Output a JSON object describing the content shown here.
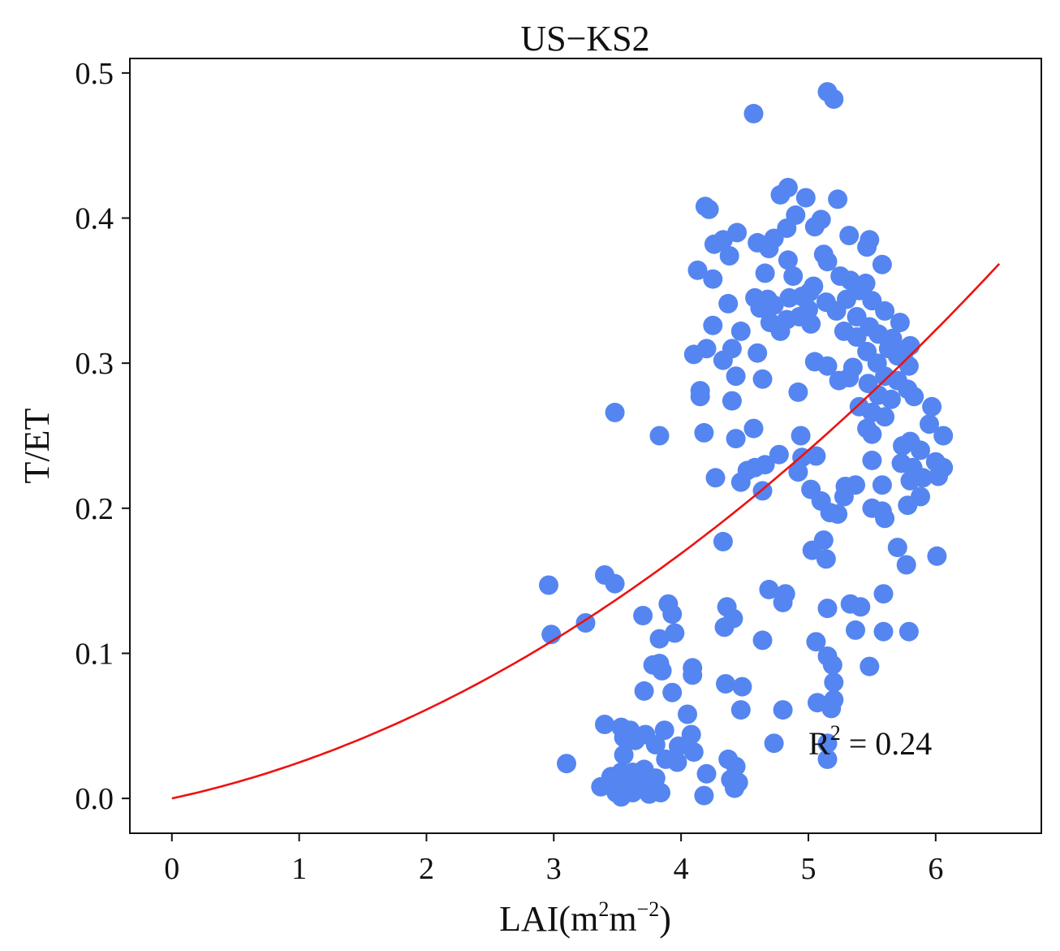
{
  "chart_data": {
    "type": "scatter",
    "title": "US−KS2",
    "xlabel": {
      "base": "LAI(m",
      "sup1": "2",
      "mid": "m",
      "sup2": "−2",
      "end": ")"
    },
    "ylabel": "T/ET",
    "xlim": [
      -0.33,
      6.83
    ],
    "ylim": [
      -0.024,
      0.51
    ],
    "xticks": [
      0,
      1,
      2,
      3,
      4,
      5,
      6
    ],
    "xtick_labels": [
      "0",
      "1",
      "2",
      "3",
      "4",
      "5",
      "6"
    ],
    "yticks": [
      0.0,
      0.1,
      0.2,
      0.3,
      0.4,
      0.5
    ],
    "ytick_labels": [
      "0.0",
      "0.1",
      "0.2",
      "0.3",
      "0.4",
      "0.5"
    ],
    "grid": false,
    "legend": null,
    "point_color": "#5585f0",
    "fit_color": "#ee1111",
    "annotation": {
      "base": "R",
      "sup": "2",
      "rest": " = 0.24",
      "position": "lower-right"
    },
    "fit": {
      "model": "quadratic",
      "a": 0.0058,
      "b": 0.019,
      "c": 0.0,
      "x_range": [
        0,
        6.5
      ]
    },
    "points": [
      [
        5.15,
        0.487
      ],
      [
        5.2,
        0.482
      ],
      [
        4.57,
        0.472
      ],
      [
        4.84,
        0.421
      ],
      [
        4.78,
        0.416
      ],
      [
        4.98,
        0.414
      ],
      [
        5.23,
        0.413
      ],
      [
        4.19,
        0.408
      ],
      [
        4.22,
        0.406
      ],
      [
        4.9,
        0.402
      ],
      [
        5.1,
        0.399
      ],
      [
        5.05,
        0.394
      ],
      [
        4.83,
        0.393
      ],
      [
        4.44,
        0.39
      ],
      [
        5.32,
        0.388
      ],
      [
        5.48,
        0.385
      ],
      [
        4.73,
        0.386
      ],
      [
        4.33,
        0.385
      ],
      [
        4.26,
        0.382
      ],
      [
        4.6,
        0.383
      ],
      [
        5.46,
        0.38
      ],
      [
        4.69,
        0.379
      ],
      [
        4.38,
        0.374
      ],
      [
        5.12,
        0.375
      ],
      [
        4.84,
        0.371
      ],
      [
        5.15,
        0.37
      ],
      [
        5.58,
        0.368
      ],
      [
        4.13,
        0.364
      ],
      [
        4.66,
        0.362
      ],
      [
        4.25,
        0.358
      ],
      [
        5.25,
        0.36
      ],
      [
        4.88,
        0.36
      ],
      [
        5.33,
        0.357
      ],
      [
        5.04,
        0.353
      ],
      [
        5.45,
        0.355
      ],
      [
        5.4,
        0.35
      ],
      [
        5.01,
        0.349
      ],
      [
        4.58,
        0.345
      ],
      [
        4.95,
        0.346
      ],
      [
        4.85,
        0.345
      ],
      [
        4.68,
        0.344
      ],
      [
        5.3,
        0.344
      ],
      [
        5.5,
        0.343
      ],
      [
        4.37,
        0.341
      ],
      [
        5.14,
        0.342
      ],
      [
        4.62,
        0.338
      ],
      [
        4.73,
        0.34
      ],
      [
        5.0,
        0.337
      ],
      [
        5.6,
        0.336
      ],
      [
        5.22,
        0.336
      ],
      [
        4.93,
        0.332
      ],
      [
        5.38,
        0.332
      ],
      [
        4.83,
        0.33
      ],
      [
        4.7,
        0.328
      ],
      [
        5.72,
        0.328
      ],
      [
        5.02,
        0.327
      ],
      [
        4.25,
        0.326
      ],
      [
        5.48,
        0.325
      ],
      [
        4.78,
        0.322
      ],
      [
        5.28,
        0.322
      ],
      [
        4.47,
        0.322
      ],
      [
        5.55,
        0.32
      ],
      [
        5.38,
        0.318
      ],
      [
        5.66,
        0.317
      ],
      [
        5.8,
        0.312
      ],
      [
        5.63,
        0.31
      ],
      [
        4.4,
        0.31
      ],
      [
        4.2,
        0.31
      ],
      [
        5.46,
        0.308
      ],
      [
        5.7,
        0.305
      ],
      [
        5.75,
        0.307
      ],
      [
        4.1,
        0.306
      ],
      [
        4.6,
        0.307
      ],
      [
        4.33,
        0.302
      ],
      [
        5.05,
        0.301
      ],
      [
        5.15,
        0.298
      ],
      [
        5.54,
        0.3
      ],
      [
        5.79,
        0.298
      ],
      [
        5.35,
        0.297
      ],
      [
        4.43,
        0.291
      ],
      [
        5.6,
        0.291
      ],
      [
        5.24,
        0.288
      ],
      [
        5.32,
        0.29
      ],
      [
        4.64,
        0.289
      ],
      [
        5.47,
        0.286
      ],
      [
        5.7,
        0.288
      ],
      [
        5.78,
        0.282
      ],
      [
        4.92,
        0.28
      ],
      [
        4.15,
        0.281
      ],
      [
        4.15,
        0.277
      ],
      [
        5.83,
        0.277
      ],
      [
        5.55,
        0.278
      ],
      [
        4.4,
        0.274
      ],
      [
        5.65,
        0.275
      ],
      [
        5.4,
        0.27
      ],
      [
        5.97,
        0.27
      ],
      [
        5.5,
        0.266
      ],
      [
        5.6,
        0.263
      ],
      [
        3.48,
        0.266
      ],
      [
        5.95,
        0.258
      ],
      [
        4.57,
        0.255
      ],
      [
        5.46,
        0.255
      ],
      [
        4.18,
        0.252
      ],
      [
        5.5,
        0.251
      ],
      [
        3.83,
        0.25
      ],
      [
        4.94,
        0.25
      ],
      [
        6.06,
        0.25
      ],
      [
        4.43,
        0.248
      ],
      [
        5.8,
        0.246
      ],
      [
        5.88,
        0.24
      ],
      [
        5.74,
        0.243
      ],
      [
        4.77,
        0.237
      ],
      [
        4.95,
        0.235
      ],
      [
        5.06,
        0.236
      ],
      [
        5.5,
        0.233
      ],
      [
        5.73,
        0.231
      ],
      [
        6.0,
        0.232
      ],
      [
        6.06,
        0.228
      ],
      [
        5.82,
        0.228
      ],
      [
        4.66,
        0.23
      ],
      [
        4.52,
        0.226
      ],
      [
        4.58,
        0.228
      ],
      [
        4.92,
        0.225
      ],
      [
        5.9,
        0.221
      ],
      [
        6.02,
        0.222
      ],
      [
        4.27,
        0.221
      ],
      [
        5.8,
        0.219
      ],
      [
        4.47,
        0.218
      ],
      [
        5.29,
        0.215
      ],
      [
        5.37,
        0.216
      ],
      [
        5.58,
        0.216
      ],
      [
        5.02,
        0.213
      ],
      [
        4.64,
        0.212
      ],
      [
        5.88,
        0.208
      ],
      [
        5.1,
        0.205
      ],
      [
        5.28,
        0.208
      ],
      [
        5.78,
        0.202
      ],
      [
        5.5,
        0.2
      ],
      [
        5.58,
        0.198
      ],
      [
        5.23,
        0.196
      ],
      [
        5.17,
        0.197
      ],
      [
        5.6,
        0.193
      ],
      [
        5.12,
        0.178
      ],
      [
        4.33,
        0.177
      ],
      [
        5.03,
        0.171
      ],
      [
        5.7,
        0.173
      ],
      [
        5.14,
        0.165
      ],
      [
        6.01,
        0.167
      ],
      [
        5.77,
        0.161
      ],
      [
        3.4,
        0.154
      ],
      [
        3.48,
        0.148
      ],
      [
        2.96,
        0.147
      ],
      [
        4.69,
        0.144
      ],
      [
        4.82,
        0.141
      ],
      [
        5.59,
        0.141
      ],
      [
        4.8,
        0.135
      ],
      [
        3.9,
        0.134
      ],
      [
        5.33,
        0.134
      ],
      [
        5.41,
        0.132
      ],
      [
        4.36,
        0.132
      ],
      [
        5.15,
        0.131
      ],
      [
        3.93,
        0.127
      ],
      [
        3.7,
        0.126
      ],
      [
        4.41,
        0.124
      ],
      [
        3.25,
        0.121
      ],
      [
        4.34,
        0.118
      ],
      [
        5.37,
        0.116
      ],
      [
        5.59,
        0.115
      ],
      [
        5.79,
        0.115
      ],
      [
        2.98,
        0.113
      ],
      [
        3.95,
        0.114
      ],
      [
        3.83,
        0.11
      ],
      [
        4.64,
        0.109
      ],
      [
        5.06,
        0.108
      ],
      [
        5.15,
        0.098
      ],
      [
        4.09,
        0.09
      ],
      [
        5.19,
        0.092
      ],
      [
        3.78,
        0.092
      ],
      [
        3.83,
        0.093
      ],
      [
        5.48,
        0.091
      ],
      [
        3.85,
        0.088
      ],
      [
        4.09,
        0.085
      ],
      [
        4.35,
        0.079
      ],
      [
        5.2,
        0.08
      ],
      [
        4.48,
        0.077
      ],
      [
        3.71,
        0.074
      ],
      [
        3.93,
        0.073
      ],
      [
        5.07,
        0.066
      ],
      [
        5.2,
        0.068
      ],
      [
        5.18,
        0.062
      ],
      [
        4.47,
        0.061
      ],
      [
        4.8,
        0.061
      ],
      [
        4.05,
        0.058
      ],
      [
        3.4,
        0.051
      ],
      [
        3.53,
        0.049
      ],
      [
        3.6,
        0.047
      ],
      [
        3.87,
        0.047
      ],
      [
        3.72,
        0.044
      ],
      [
        4.08,
        0.044
      ],
      [
        3.55,
        0.042
      ],
      [
        3.64,
        0.04
      ],
      [
        4.73,
        0.038
      ],
      [
        5.15,
        0.038
      ],
      [
        3.98,
        0.036
      ],
      [
        3.8,
        0.037
      ],
      [
        4.1,
        0.032
      ],
      [
        3.55,
        0.03
      ],
      [
        5.15,
        0.027
      ],
      [
        3.88,
        0.027
      ],
      [
        4.37,
        0.027
      ],
      [
        3.97,
        0.025
      ],
      [
        3.1,
        0.024
      ],
      [
        4.43,
        0.022
      ],
      [
        3.71,
        0.02
      ],
      [
        3.53,
        0.018
      ],
      [
        3.62,
        0.018
      ],
      [
        4.2,
        0.017
      ],
      [
        3.45,
        0.015
      ],
      [
        3.8,
        0.014
      ],
      [
        4.39,
        0.013
      ],
      [
        3.6,
        0.012
      ],
      [
        3.66,
        0.01
      ],
      [
        4.45,
        0.011
      ],
      [
        3.37,
        0.008
      ],
      [
        3.73,
        0.007
      ],
      [
        3.56,
        0.006
      ],
      [
        4.42,
        0.007
      ],
      [
        3.49,
        0.004
      ],
      [
        3.62,
        0.004
      ],
      [
        3.84,
        0.004
      ],
      [
        3.75,
        0.003
      ],
      [
        3.53,
        0.001
      ],
      [
        4.18,
        0.002
      ]
    ]
  }
}
